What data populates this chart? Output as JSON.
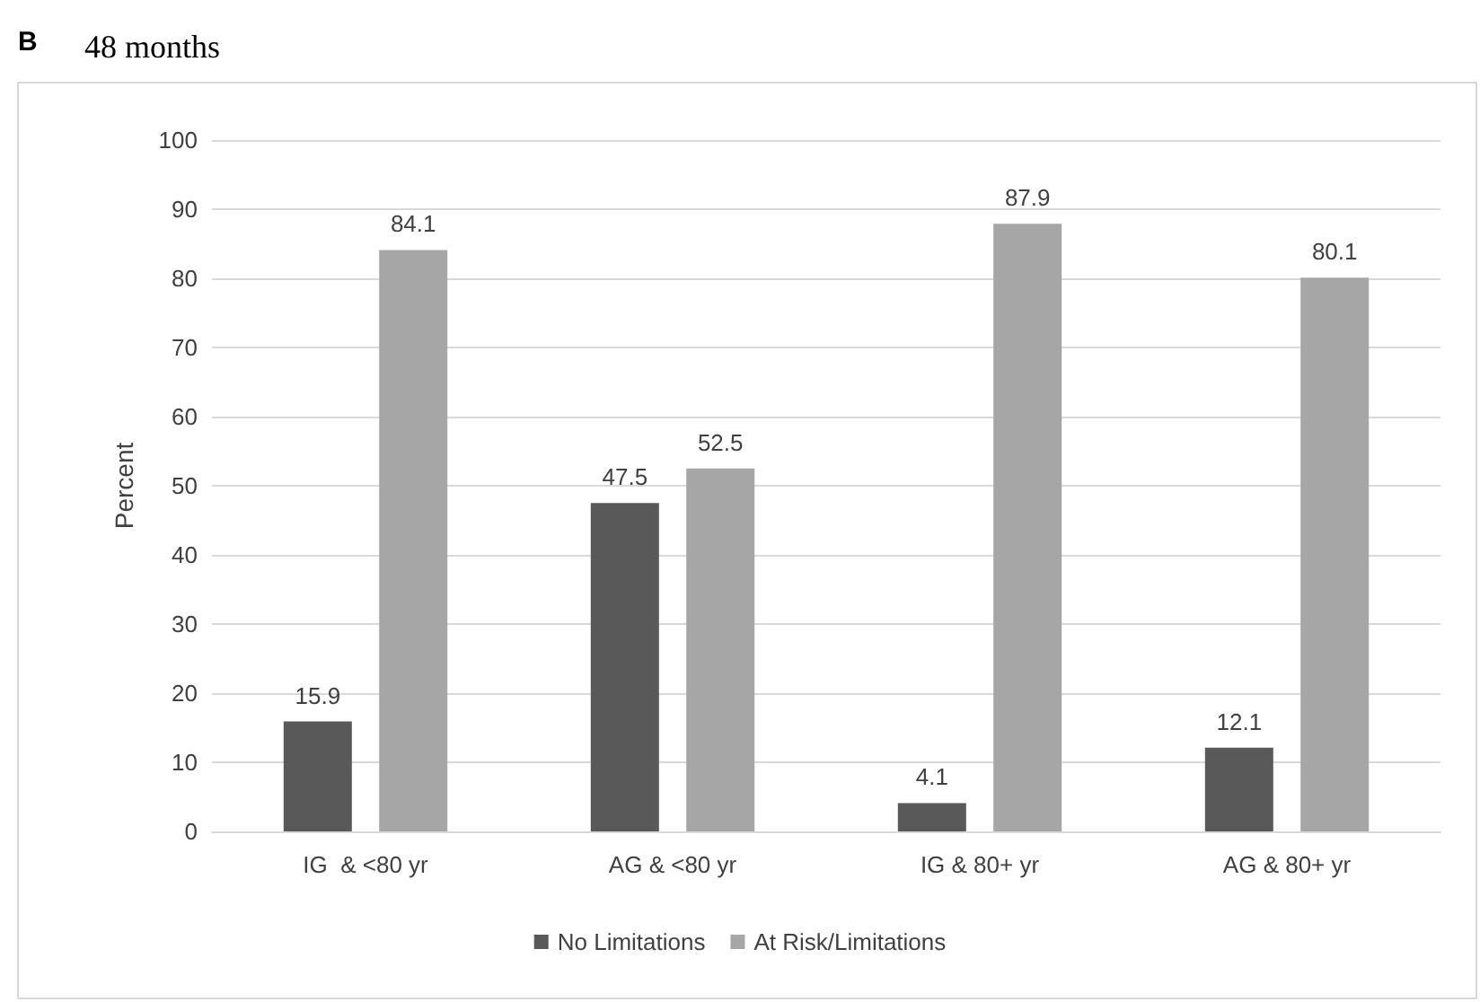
{
  "chart_data": {
    "type": "bar",
    "title": "48 months",
    "annotations": [
      "B"
    ],
    "ylabel": "Percent",
    "categories": [
      "IG  & <80 yr",
      "AG & <80 yr",
      "IG & 80+ yr",
      "AG & 80+ yr"
    ],
    "series": [
      {
        "name": "No Limitations",
        "color": "#595959",
        "values": [
          15.9,
          47.5,
          4.1,
          12.1
        ]
      },
      {
        "name": "At Risk/Limitations",
        "color": "#a6a6a6",
        "values": [
          84.1,
          52.5,
          87.9,
          80.1
        ]
      }
    ],
    "ylim": [
      0,
      100
    ],
    "yticks": [
      0,
      10,
      20,
      30,
      40,
      50,
      60,
      70,
      80,
      90,
      100
    ],
    "grid": "y",
    "legend": "bottom",
    "data_labels": true
  }
}
